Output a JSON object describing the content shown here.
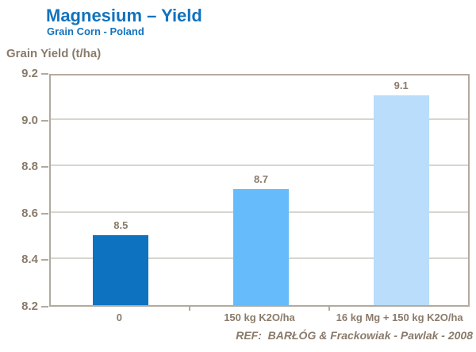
{
  "header": {
    "title": "Magnesium – Yield",
    "subtitle": "Grain Corn - Poland"
  },
  "axis_title": "Grain Yield (t/ha)",
  "footer": {
    "ref": "REF:  BARŁÓG & Frackowiak - Pawlak - 2008"
  },
  "colors": {
    "title_blue": "#1273BD",
    "text_brown": "#8A7B6B",
    "plot_border": "#B3AA9E",
    "gridline": "#D6D6CE",
    "bar_colors": [
      "#0D73C0",
      "#66BBFA",
      "#B9DDFA"
    ]
  },
  "chart_data": {
    "type": "bar",
    "title": "Magnesium – Yield",
    "subtitle": "Grain Corn - Poland",
    "xlabel": "",
    "ylabel": "Grain Yield (t/ha)",
    "categories": [
      "0",
      "150 kg K2O/ha",
      "16 kg Mg + 150 kg K2O/ha"
    ],
    "values": [
      8.5,
      8.7,
      9.1
    ],
    "ylim": [
      8.2,
      9.2
    ],
    "yticks": [
      8.2,
      8.4,
      8.6,
      8.8,
      9.0,
      9.2
    ],
    "grid": true,
    "legend": false,
    "value_labels": [
      "8.5",
      "8.7",
      "9.1"
    ],
    "annotation": "REF:  BARŁÓG & Frackowiak - Pawlak - 2008"
  }
}
